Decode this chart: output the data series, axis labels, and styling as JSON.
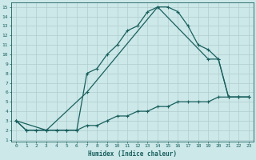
{
  "xlabel": "Humidex (Indice chaleur)",
  "bg_color": "#cce8e8",
  "line_color": "#1a5f5f",
  "grid_color": "#b0cccc",
  "xlim": [
    -0.5,
    23.5
  ],
  "ylim": [
    0.8,
    15.5
  ],
  "xticks": [
    0,
    1,
    2,
    3,
    4,
    5,
    6,
    7,
    8,
    9,
    10,
    11,
    12,
    13,
    14,
    15,
    16,
    17,
    18,
    19,
    20,
    21,
    22,
    23
  ],
  "yticks": [
    1,
    2,
    3,
    4,
    5,
    6,
    7,
    8,
    9,
    10,
    11,
    12,
    13,
    14,
    15
  ],
  "line1_x": [
    0,
    1,
    2,
    3,
    4,
    5,
    6,
    7,
    8,
    9,
    10,
    11,
    12,
    13,
    14,
    15,
    16,
    17,
    18,
    19,
    20,
    21,
    22,
    23
  ],
  "line1_y": [
    3,
    2,
    2,
    2,
    2,
    2,
    2,
    8,
    8.5,
    10,
    11,
    12.5,
    13,
    14.5,
    15,
    15,
    14.5,
    13,
    11,
    10.5,
    9.5,
    5.5,
    5.5,
    5.5
  ],
  "line2_x": [
    0,
    3,
    7,
    14,
    19,
    20,
    21,
    22,
    23
  ],
  "line2_y": [
    3,
    2,
    6,
    15,
    9.5,
    9.5,
    5.5,
    5.5,
    5.5
  ],
  "line3_x": [
    0,
    1,
    2,
    3,
    4,
    5,
    6,
    7,
    8,
    9,
    10,
    11,
    12,
    13,
    14,
    15,
    16,
    17,
    18,
    19,
    20,
    21,
    22,
    23
  ],
  "line3_y": [
    3,
    2,
    2,
    2,
    2,
    2,
    2,
    2.5,
    2.5,
    3,
    3.5,
    3.5,
    4,
    4,
    4.5,
    4.5,
    5,
    5,
    5,
    5,
    5.5,
    5.5,
    5.5,
    5.5
  ]
}
